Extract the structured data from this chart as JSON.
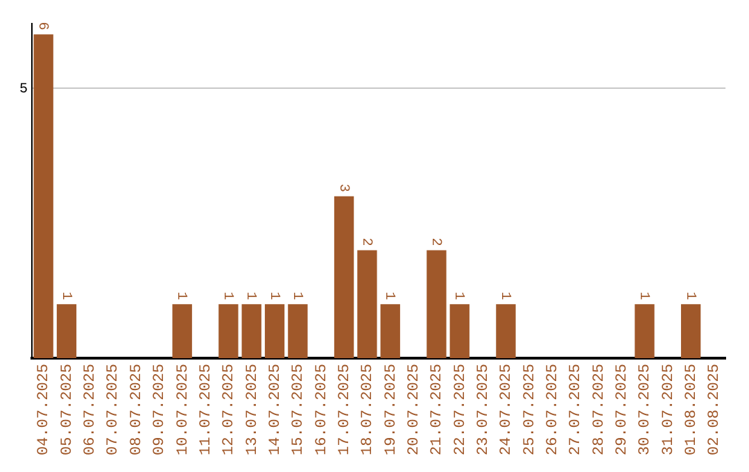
{
  "chart_data": {
    "type": "bar",
    "categories": [
      "04.07.2025",
      "05.07.2025",
      "06.07.2025",
      "07.07.2025",
      "08.07.2025",
      "09.07.2025",
      "10.07.2025",
      "11.07.2025",
      "12.07.2025",
      "13.07.2025",
      "14.07.2025",
      "15.07.2025",
      "16.07.2025",
      "17.07.2025",
      "18.07.2025",
      "19.07.2025",
      "20.07.2025",
      "21.07.2025",
      "22.07.2025",
      "23.07.2025",
      "24.07.2025",
      "25.07.2025",
      "26.07.2025",
      "27.07.2025",
      "28.07.2025",
      "29.07.2025",
      "30.07.2025",
      "31.07.2025",
      "01.08.2025",
      "02.08.2025"
    ],
    "values": [
      6,
      1,
      0,
      0,
      0,
      0,
      1,
      0,
      1,
      1,
      1,
      1,
      0,
      3,
      2,
      1,
      0,
      2,
      1,
      0,
      1,
      0,
      0,
      0,
      0,
      0,
      1,
      0,
      1,
      0
    ],
    "value_labels": [
      "6",
      "1",
      null,
      null,
      null,
      null,
      "1",
      null,
      "1",
      "1",
      "1",
      "1",
      null,
      "3",
      "2",
      "1",
      null,
      "2",
      "1",
      null,
      "1",
      null,
      null,
      null,
      null,
      null,
      "1",
      null,
      "1",
      null
    ],
    "color": "#a0582a",
    "ylim": [
      0,
      6.2
    ],
    "yticks": [
      5
    ],
    "grid": "y",
    "legend": false
  }
}
